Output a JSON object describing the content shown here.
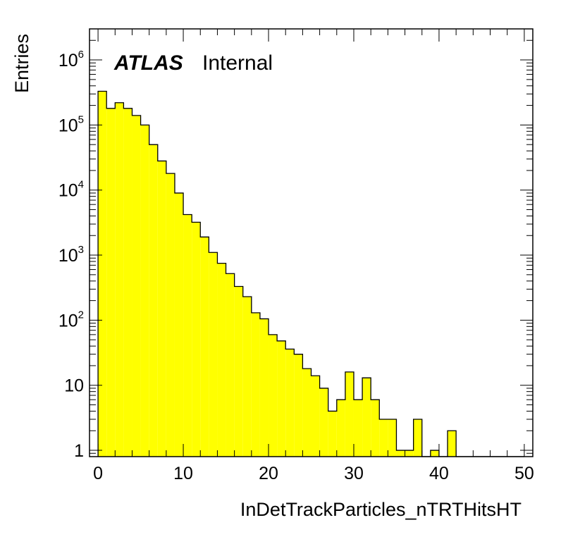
{
  "chart_data": {
    "type": "bar",
    "style": "histogram",
    "xlabel": "InDetTrackParticles_nTRTHitsHT",
    "ylabel": "Entries",
    "experiment_label": "ATLAS",
    "status_label": "Internal",
    "xlim": [
      -1,
      51
    ],
    "ylim": [
      0.8,
      3000000
    ],
    "y_scale": "log",
    "x_ticks": [
      0,
      10,
      20,
      30,
      40,
      50
    ],
    "y_ticks": [
      {
        "value": 1,
        "base": "1",
        "exp": ""
      },
      {
        "value": 10,
        "base": "10",
        "exp": ""
      },
      {
        "value": 100,
        "base": "10",
        "exp": "2"
      },
      {
        "value": 1000,
        "base": "10",
        "exp": "3"
      },
      {
        "value": 10000,
        "base": "10",
        "exp": "4"
      },
      {
        "value": 100000,
        "base": "10",
        "exp": "5"
      },
      {
        "value": 1000000,
        "base": "10",
        "exp": "6"
      }
    ],
    "bin_width": 1,
    "bin_low_edges": [
      0,
      1,
      2,
      3,
      4,
      5,
      6,
      7,
      8,
      9,
      10,
      11,
      12,
      13,
      14,
      15,
      16,
      17,
      18,
      19,
      20,
      21,
      22,
      23,
      24,
      25,
      26,
      27,
      28,
      29,
      30,
      31,
      32,
      33,
      34,
      35,
      36,
      37,
      38,
      39,
      40,
      41,
      42,
      43,
      44,
      45,
      46,
      47,
      48,
      49
    ],
    "values": [
      330000,
      180000,
      220000,
      180000,
      140000,
      100000,
      50000,
      28000,
      18000,
      9000,
      4200,
      3200,
      1900,
      1100,
      750,
      520,
      330,
      230,
      130,
      105,
      60,
      48,
      36,
      30,
      18,
      14,
      9,
      4,
      6,
      16,
      6,
      13,
      6,
      3,
      3,
      1,
      1,
      3,
      0,
      1,
      0,
      2,
      0,
      0,
      0,
      0,
      0,
      0,
      0,
      0
    ],
    "fill_color": "#ffff00",
    "line_color": "#000000",
    "grid": false
  }
}
